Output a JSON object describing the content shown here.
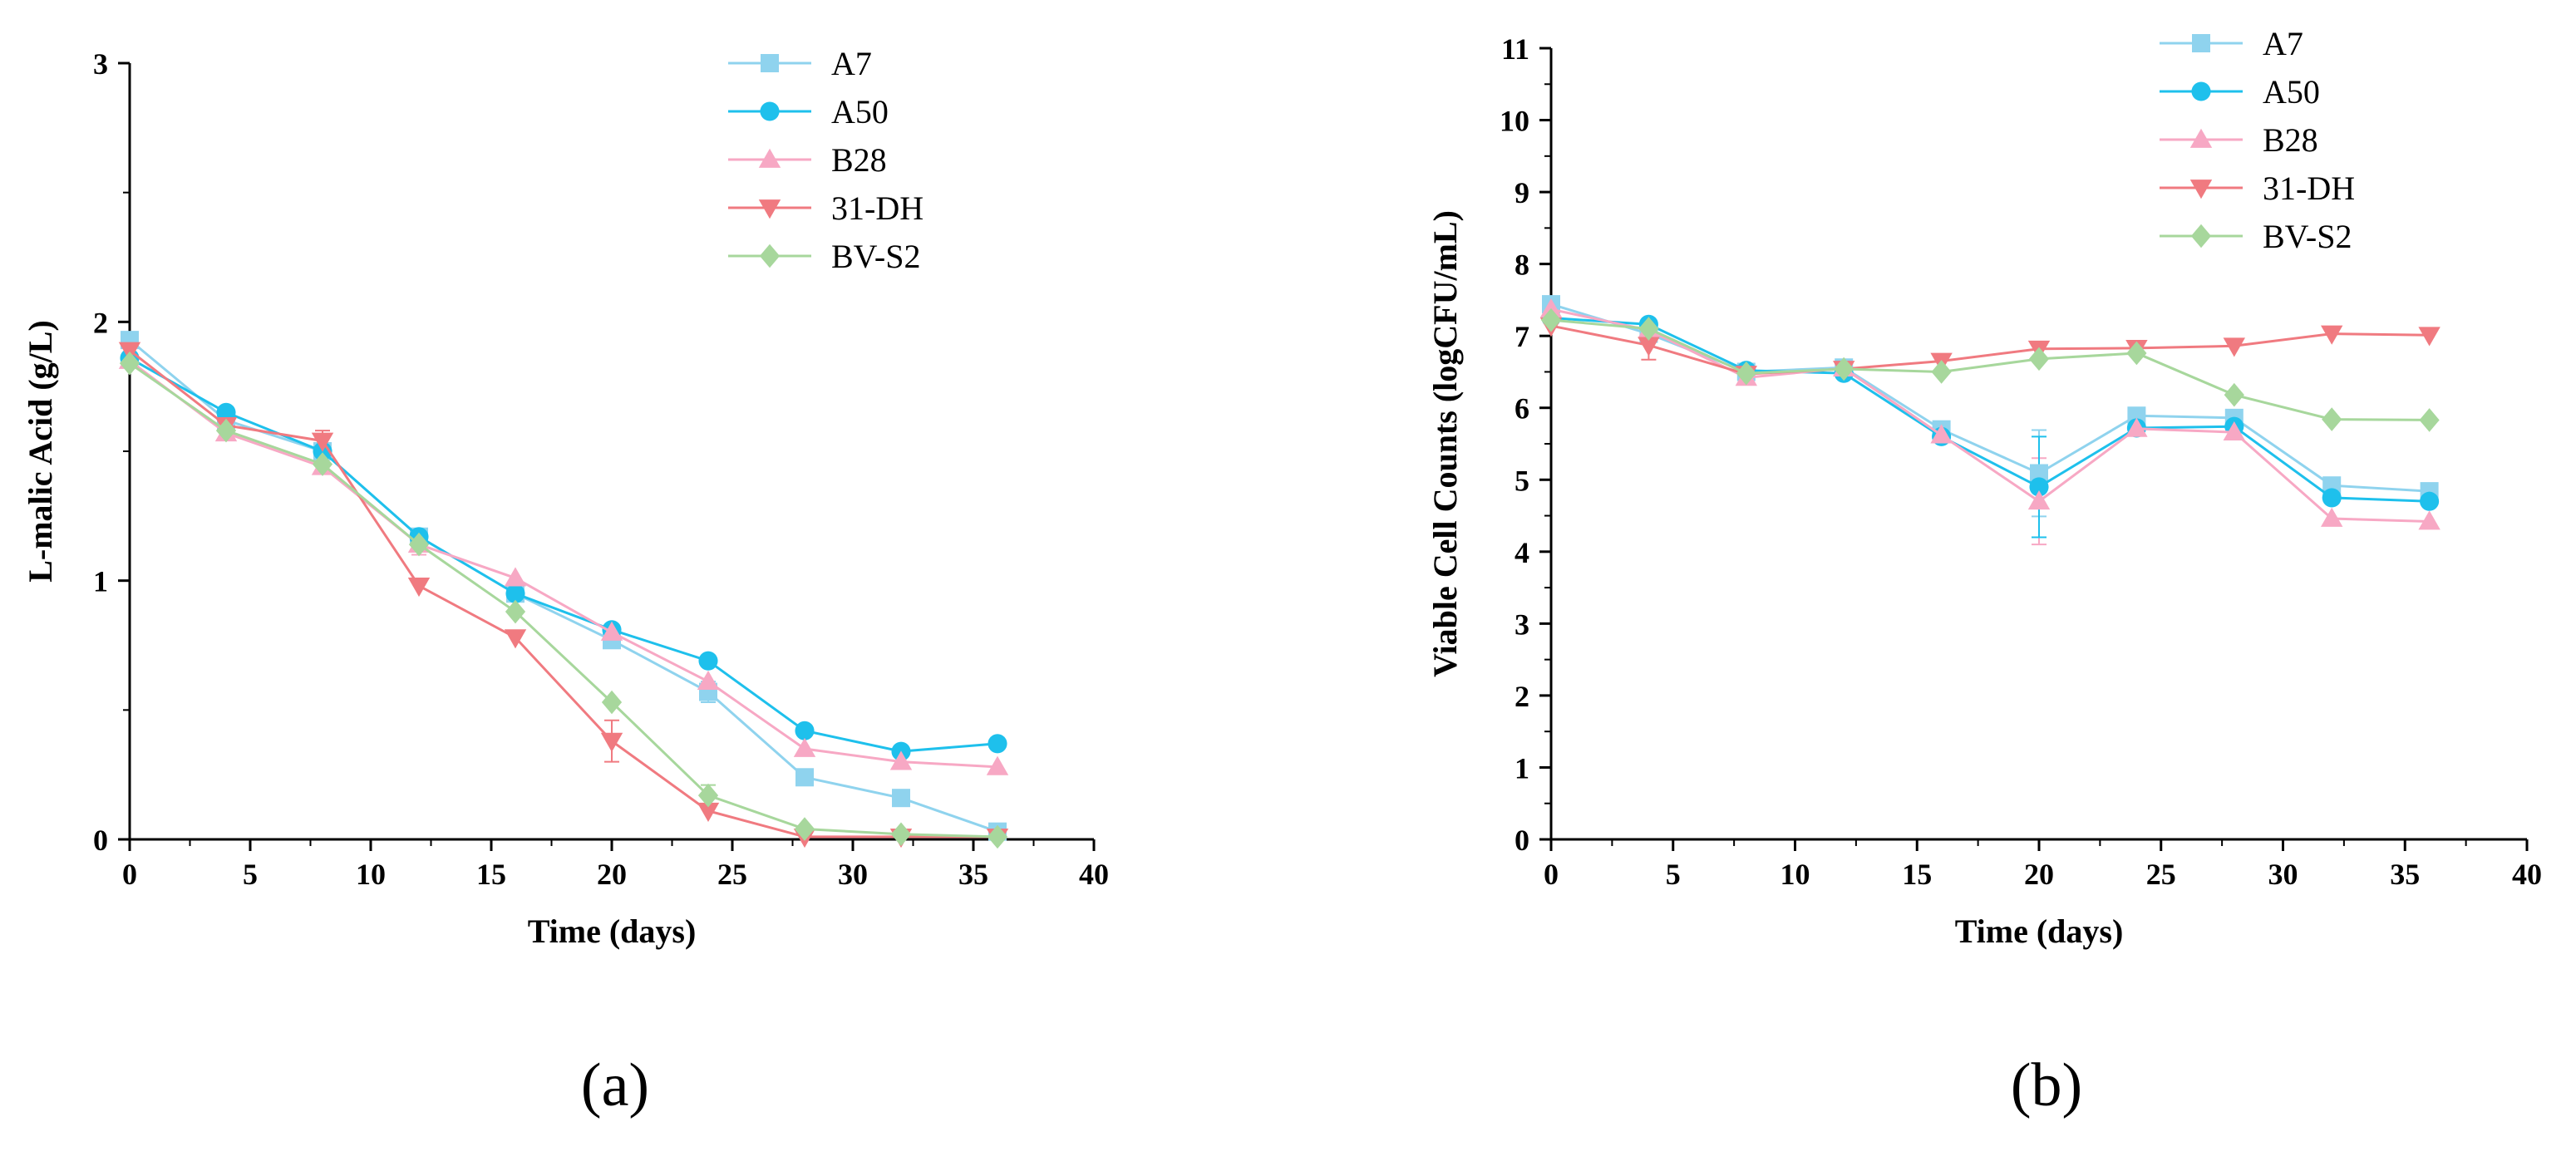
{
  "chart_data": [
    {
      "type": "line",
      "panel_label": "(a)",
      "xlabel": "Time (days)",
      "ylabel": "L-malic Acid (g/L)",
      "xlim": [
        0,
        40
      ],
      "ylim": [
        0,
        3
      ],
      "xticks": [
        0,
        5,
        10,
        15,
        20,
        25,
        30,
        35,
        40
      ],
      "yticks": [
        0,
        1,
        2,
        3
      ],
      "legend_position": "top-right",
      "x": [
        0,
        4,
        8,
        12,
        16,
        20,
        24,
        28,
        32,
        36
      ],
      "series": [
        {
          "name": "A7",
          "color": "#8fd3ee",
          "marker": "square",
          "values": [
            1.93,
            1.62,
            1.5,
            1.17,
            0.95,
            0.77,
            0.57,
            0.24,
            0.16,
            0.03
          ]
        },
        {
          "name": "A50",
          "color": "#1ec0ec",
          "marker": "circle",
          "values": [
            1.86,
            1.65,
            1.5,
            1.17,
            0.95,
            0.81,
            0.69,
            0.42,
            0.34,
            0.37
          ]
        },
        {
          "name": "B28",
          "color": "#f7a8c4",
          "marker": "triangle-up",
          "values": [
            1.85,
            1.57,
            1.44,
            1.14,
            1.01,
            0.8,
            0.61,
            0.35,
            0.3,
            0.28
          ]
        },
        {
          "name": "31-DH",
          "color": "#f07a80",
          "marker": "triangle-down",
          "values": [
            1.89,
            1.6,
            1.54,
            0.98,
            0.78,
            0.38,
            0.11,
            0.01,
            0.01,
            0.01
          ]
        },
        {
          "name": "BV-S2",
          "color": "#a7d79c",
          "marker": "diamond",
          "values": [
            1.84,
            1.58,
            1.45,
            1.14,
            0.88,
            0.53,
            0.17,
            0.04,
            0.02,
            0.01
          ]
        }
      ],
      "error_bars": [
        {
          "series": "31-DH",
          "x": 8,
          "err": 0.04
        },
        {
          "series": "31-DH",
          "x": 20,
          "err": 0.08
        },
        {
          "series": "BV-S2",
          "x": 24,
          "err": 0.04
        },
        {
          "series": "A7",
          "x": 24,
          "err": 0.04
        },
        {
          "series": "B28",
          "x": 12,
          "err": 0.04
        }
      ]
    },
    {
      "type": "line",
      "panel_label": "(b)",
      "xlabel": "Time (days)",
      "ylabel": "Viable Cell Counts (logCFU/mL)",
      "xlim": [
        0,
        40
      ],
      "ylim": [
        0,
        11
      ],
      "xticks": [
        0,
        5,
        10,
        15,
        20,
        25,
        30,
        35,
        40
      ],
      "yticks": [
        0,
        1,
        2,
        3,
        4,
        5,
        6,
        7,
        8,
        9,
        10,
        11
      ],
      "legend_position": "top-right",
      "x": [
        0,
        4,
        8,
        12,
        16,
        20,
        24,
        28,
        32,
        36
      ],
      "series": [
        {
          "name": "A7",
          "color": "#8fd3ee",
          "marker": "square",
          "values": [
            7.44,
            7.03,
            6.5,
            6.56,
            5.7,
            5.09,
            5.89,
            5.86,
            4.92,
            4.84
          ]
        },
        {
          "name": "A50",
          "color": "#1ec0ec",
          "marker": "circle",
          "values": [
            7.25,
            7.16,
            6.52,
            6.48,
            5.6,
            4.9,
            5.72,
            5.74,
            4.75,
            4.7
          ]
        },
        {
          "name": "B28",
          "color": "#f7a8c4",
          "marker": "triangle-up",
          "values": [
            7.37,
            7.08,
            6.42,
            6.55,
            5.62,
            4.7,
            5.71,
            5.66,
            4.46,
            4.42
          ]
        },
        {
          "name": "31-DH",
          "color": "#f07a80",
          "marker": "triangle-down",
          "values": [
            7.14,
            6.87,
            6.47,
            6.54,
            6.65,
            6.82,
            6.83,
            6.86,
            7.03,
            7.01
          ]
        },
        {
          "name": "BV-S2",
          "color": "#a7d79c",
          "marker": "diamond",
          "values": [
            7.22,
            7.1,
            6.48,
            6.54,
            6.5,
            6.68,
            6.76,
            6.18,
            5.84,
            5.83
          ]
        }
      ],
      "error_bars": [
        {
          "series": "A7",
          "x": 20,
          "err": 0.6
        },
        {
          "series": "B28",
          "x": 20,
          "err": 0.6
        },
        {
          "series": "A50",
          "x": 20,
          "err": 0.7
        },
        {
          "series": "31-DH",
          "x": 4,
          "err": 0.2
        },
        {
          "series": "A7",
          "x": 0,
          "err": 0.1
        }
      ]
    }
  ]
}
